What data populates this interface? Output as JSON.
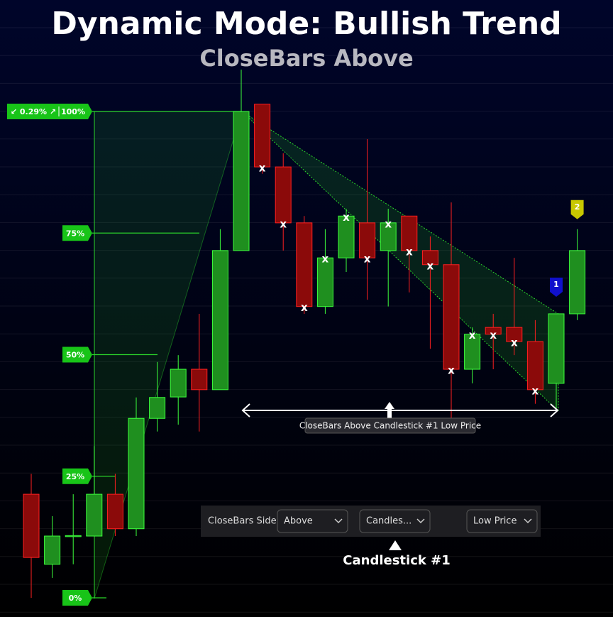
{
  "chart_data": {
    "type": "candlestick",
    "title": "Dynamic Mode: Bullish Trend",
    "subtitle": "CloseBars Above",
    "open": [
      21.3,
      6.9,
      12.6,
      12.7,
      21.3,
      14.2,
      36.9,
      41.3,
      47.0,
      42.8,
      71.4,
      101.5,
      88.6,
      77.1,
      59.9,
      69.9,
      77.1,
      71.4,
      78.5,
      71.4,
      68.5,
      47.0,
      55.6,
      55.6,
      52.7,
      44.1,
      58.4
    ],
    "high": [
      25.5,
      16.8,
      21.3,
      31.2,
      25.5,
      41.2,
      48.5,
      49.9,
      58.4,
      75.8,
      108.6,
      101.5,
      91.4,
      78.5,
      75.8,
      80.0,
      94.3,
      80.0,
      78.5,
      74.3,
      81.3,
      55.6,
      58.4,
      69.9,
      57.1,
      58.4,
      75.8
    ],
    "low": [
      0,
      4.1,
      6.9,
      12.7,
      12.7,
      12.7,
      34.2,
      35.6,
      34.2,
      42.8,
      71.4,
      87.2,
      71.4,
      58.4,
      58.4,
      67.0,
      61.3,
      59.9,
      62.8,
      51.2,
      36.9,
      44.1,
      47.0,
      49.9,
      39.9,
      38.4,
      57.1
    ],
    "close": [
      8.3,
      12.7,
      12.8,
      21.3,
      14.2,
      36.9,
      41.2,
      47.0,
      42.8,
      71.4,
      100,
      88.6,
      77.1,
      59.9,
      69.9,
      78.5,
      69.9,
      77.1,
      71.4,
      68.5,
      47.0,
      54.2,
      54.2,
      52.7,
      42.8,
      58.4,
      71.4
    ],
    "up_color": "#1f8f1f",
    "down_color": "#8b0a0a",
    "ylim": [
      -4,
      110
    ],
    "yticks": [
      {
        "value": 0,
        "label": "0%"
      },
      {
        "value": 25,
        "label": "25%"
      },
      {
        "value": 50,
        "label": "50%"
      },
      {
        "value": 75,
        "label": "75%"
      },
      {
        "value": 100,
        "label": "100%"
      }
    ],
    "range_annotation": "↙ 0.29% ↗",
    "close_markers": [
      "x",
      "x",
      "x",
      "x",
      "x",
      "x",
      "x",
      "x",
      "x",
      "x",
      "x",
      "x",
      "x",
      "x"
    ],
    "signal_badges": [
      "1",
      "2"
    ],
    "span_label": "CloseBars Above Candlestick #1 Low Price",
    "pointer_label": "Candlestick #1"
  },
  "toolbar": {
    "label": "CloseBars Side",
    "side": "Above",
    "source": "Candles...",
    "price": "Low Price"
  }
}
